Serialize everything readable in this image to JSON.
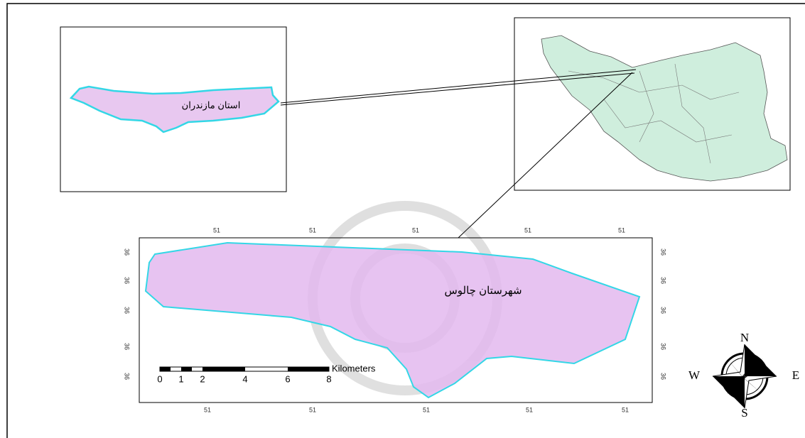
{
  "inset_province": {
    "label": "استان مازندران"
  },
  "main_map": {
    "label": "شهرستان چالوس",
    "top_ticks": [
      "51",
      "51",
      "51",
      "51",
      "51"
    ],
    "bottom_ticks": [
      "51",
      "51",
      "51",
      "51",
      "51"
    ],
    "left_ticks": [
      "36",
      "36",
      "36",
      "36",
      "36"
    ],
    "right_ticks": [
      "36",
      "36",
      "36",
      "36",
      "36"
    ]
  },
  "scale_bar": {
    "labels": [
      "0",
      "1",
      "2",
      "4",
      "6",
      "8"
    ],
    "unit": "Kilometers"
  },
  "compass": {
    "north": "N",
    "south": "S",
    "east": "E",
    "west": "W"
  }
}
